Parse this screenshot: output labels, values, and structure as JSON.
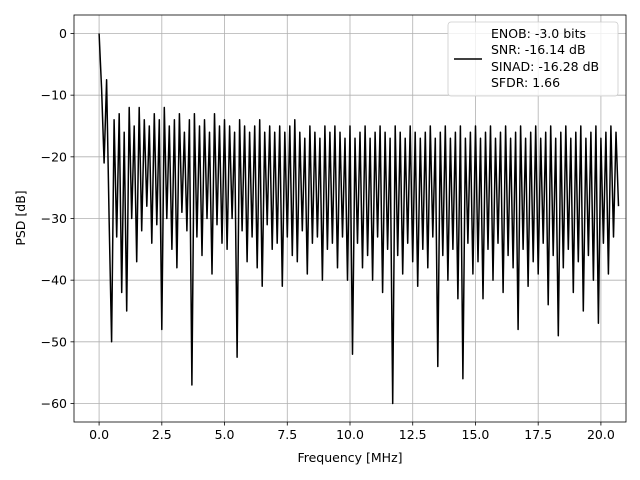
{
  "chart_data": {
    "type": "line",
    "xlabel": "Frequency [MHz]",
    "ylabel": "PSD [dB]",
    "xlim": [
      -1.0,
      21.0
    ],
    "ylim": [
      -63,
      3
    ],
    "xticks": [
      0.0,
      2.5,
      5.0,
      7.5,
      10.0,
      12.5,
      15.0,
      17.5,
      20.0
    ],
    "xtick_labels": [
      "0.0",
      "2.5",
      "5.0",
      "7.5",
      "10.0",
      "12.5",
      "15.0",
      "17.5",
      "20.0"
    ],
    "yticks": [
      0,
      -10,
      -20,
      -30,
      -40,
      -50,
      -60
    ],
    "ytick_labels": [
      "0",
      "−10",
      "−20",
      "−30",
      "−40",
      "−50",
      "−60"
    ],
    "grid": true,
    "legend": {
      "placement": "top-right",
      "entries": [
        "ENOB: -3.0 bits",
        "SNR: -16.14 dB",
        "SINAD: -16.28 dB",
        "SFDR: 1.66"
      ]
    },
    "series": [
      {
        "name": "PSD",
        "color": "#000000",
        "x_start": 0.0,
        "x_step": 0.1,
        "values": [
          0,
          -9,
          -21,
          -7.5,
          -30,
          -50,
          -14,
          -33,
          -13,
          -42,
          -16,
          -45,
          -12,
          -30,
          -15,
          -37,
          -12,
          -32,
          -14,
          -28,
          -15,
          -34,
          -13,
          -31,
          -14,
          -48,
          -12,
          -30,
          -15,
          -35,
          -14,
          -38,
          -13,
          -29,
          -16,
          -32,
          -14,
          -57,
          -13,
          -33,
          -15,
          -36,
          -14,
          -30,
          -16,
          -39,
          -13,
          -31,
          -15,
          -34,
          -14,
          -35,
          -15,
          -30,
          -16,
          -52.5,
          -14,
          -32,
          -15,
          -37,
          -16,
          -33,
          -15,
          -38,
          -14,
          -41,
          -16,
          -31,
          -15,
          -35,
          -16,
          -34,
          -15,
          -41,
          -16,
          -33,
          -15,
          -36,
          -14,
          -37,
          -16,
          -32,
          -17,
          -39,
          -15,
          -34,
          -16,
          -33,
          -17,
          -40,
          -15,
          -35,
          -16,
          -34,
          -15,
          -38,
          -16,
          -33,
          -17,
          -40,
          -15,
          -52,
          -17,
          -34,
          -16,
          -38,
          -15,
          -36,
          -17,
          -40,
          -16,
          -33,
          -15,
          -42,
          -16,
          -35,
          -17,
          -60,
          -15,
          -36,
          -16,
          -39,
          -17,
          -34,
          -15,
          -37,
          -16,
          -41,
          -17,
          -35,
          -16,
          -38,
          -15,
          -33,
          -17,
          -54,
          -16,
          -36,
          -15,
          -40,
          -17,
          -35,
          -16,
          -43,
          -15,
          -56,
          -17,
          -34,
          -16,
          -39,
          -15,
          -37,
          -17,
          -43,
          -16,
          -35,
          -15,
          -40,
          -17,
          -34,
          -16,
          -42,
          -15,
          -36,
          -17,
          -38,
          -16,
          -48,
          -15,
          -35,
          -17,
          -41,
          -16,
          -37,
          -15,
          -39,
          -17,
          -34,
          -16,
          -44,
          -15,
          -36,
          -17,
          -49,
          -16,
          -38,
          -15,
          -35,
          -17,
          -42,
          -16,
          -37,
          -15,
          -45,
          -17,
          -36,
          -16,
          -40,
          -15,
          -47,
          -17,
          -34,
          -16,
          -39,
          -15,
          -33,
          -16,
          -28
        ]
      }
    ]
  }
}
